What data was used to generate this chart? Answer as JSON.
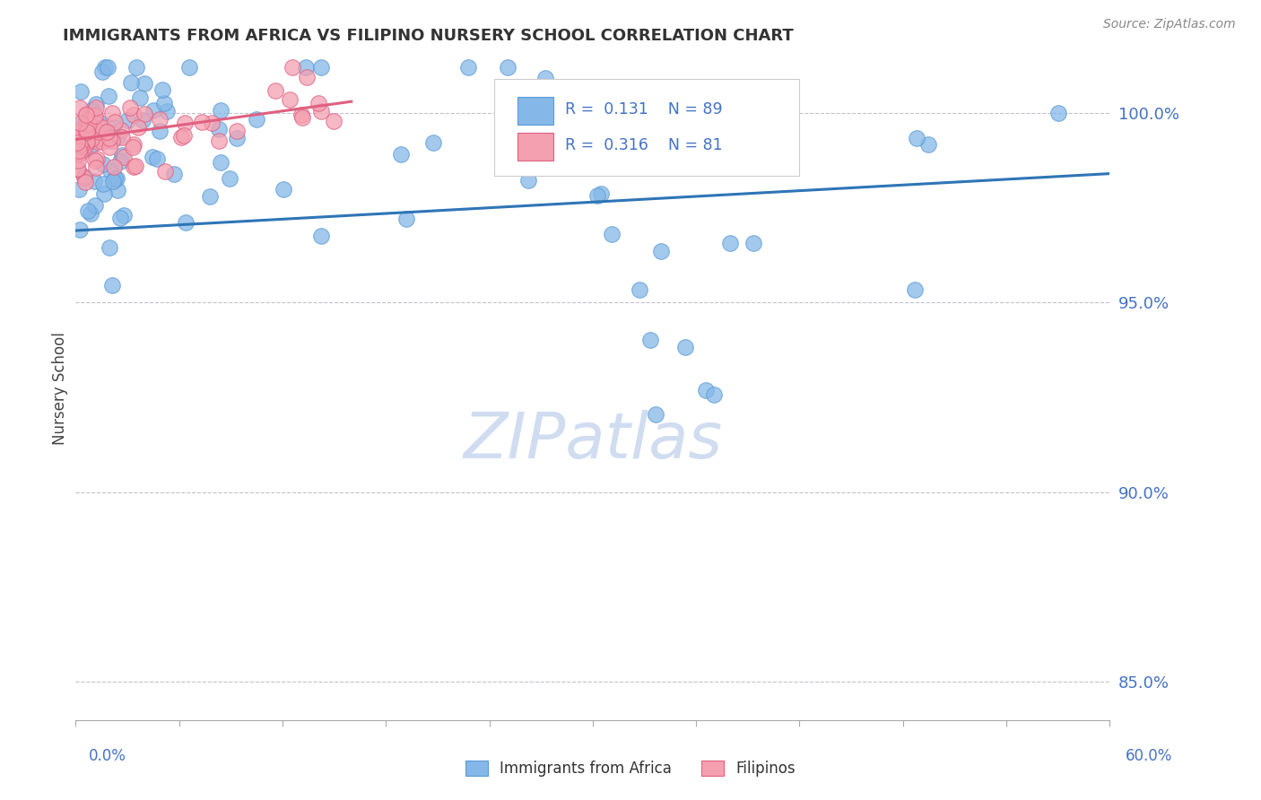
{
  "title": "IMMIGRANTS FROM AFRICA VS FILIPINO NURSERY SCHOOL CORRELATION CHART",
  "source": "Source: ZipAtlas.com",
  "ylabel": "Nursery School",
  "legend_label_blue": "Immigrants from Africa",
  "legend_label_pink": "Filipinos",
  "blue_color": "#85B8E8",
  "blue_edge_color": "#5B9BD5",
  "pink_color": "#F4A0B0",
  "pink_edge_color": "#E06080",
  "blue_line_color": "#2E75B6",
  "pink_line_color": "#E06080",
  "axis_label_color": "#4472C4",
  "title_color": "#333333",
  "watermark_color": "#D0DCF0",
  "xlim": [
    0.0,
    60.0
  ],
  "ylim": [
    84.0,
    101.5
  ],
  "yticks": [
    85.0,
    90.0,
    95.0,
    100.0
  ],
  "blue_trend": [
    0.0,
    60.0,
    96.9,
    98.4
  ],
  "pink_trend": [
    0.0,
    16.0,
    99.3,
    100.3
  ]
}
